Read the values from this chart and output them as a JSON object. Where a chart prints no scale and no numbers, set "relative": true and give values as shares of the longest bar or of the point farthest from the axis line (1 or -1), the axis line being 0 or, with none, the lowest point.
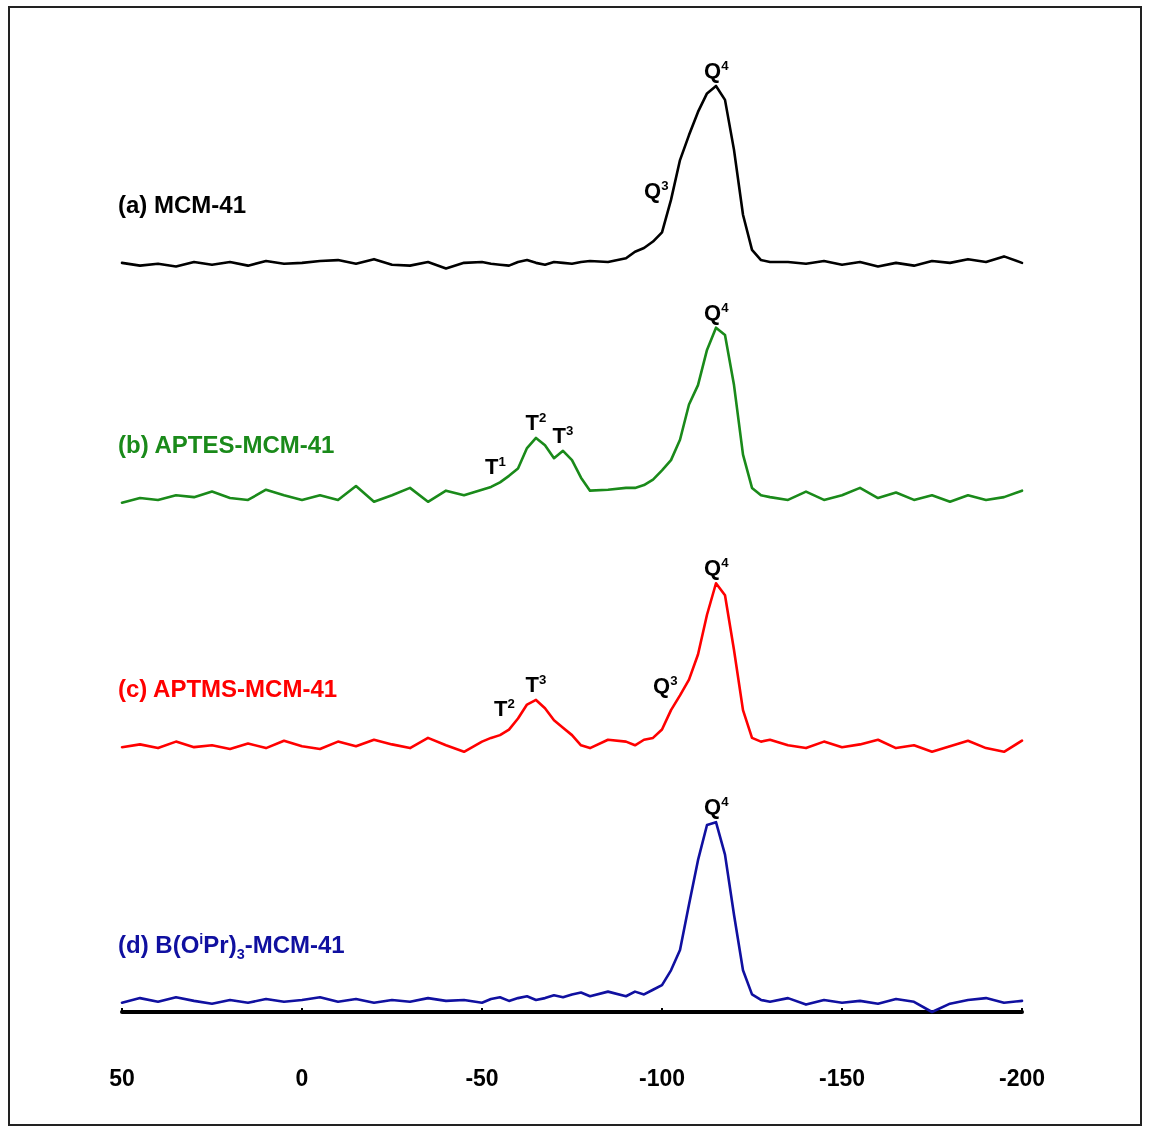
{
  "chart_data": {
    "type": "line",
    "relative": true,
    "grid": false,
    "xlim": [
      50,
      -200
    ],
    "xticks": [
      50,
      0,
      -50,
      -100,
      -150,
      -200
    ],
    "tick_labels": "x",
    "x": [
      50,
      45,
      40,
      35,
      30,
      25,
      20,
      15,
      10,
      5,
      0,
      -5,
      -10,
      -15,
      -20,
      -25,
      -30,
      -35,
      -40,
      -45,
      -50,
      -52.5,
      -55,
      -57.5,
      -60,
      -62.5,
      -65,
      -67.5,
      -70,
      -72.5,
      -75,
      -77.5,
      -80,
      -85,
      -90,
      -92.5,
      -95,
      -97.5,
      -100,
      -102.5,
      -105,
      -107.5,
      -110,
      -112.5,
      -115,
      -117.5,
      -120,
      -122.5,
      -125,
      -127.5,
      -130,
      -135,
      -140,
      -145,
      -150,
      -155,
      -160,
      -165,
      -170,
      -175,
      -180,
      -185,
      -190,
      -195,
      -200
    ],
    "series": [
      {
        "name": "(a) MCM-41",
        "color": "#000000",
        "values": [
          0.809,
          0.806,
          0.808,
          0.805,
          0.81,
          0.807,
          0.81,
          0.806,
          0.811,
          0.808,
          0.809,
          0.811,
          0.812,
          0.808,
          0.813,
          0.807,
          0.806,
          0.81,
          0.803,
          0.809,
          0.81,
          0.808,
          0.807,
          0.806,
          0.81,
          0.812,
          0.809,
          0.807,
          0.81,
          0.809,
          0.808,
          0.81,
          0.811,
          0.81,
          0.814,
          0.821,
          0.825,
          0.832,
          0.842,
          0.877,
          0.92,
          0.947,
          0.972,
          0.992,
          1,
          0.985,
          0.931,
          0.861,
          0.823,
          0.812,
          0.81,
          0.81,
          0.808,
          0.811,
          0.807,
          0.81,
          0.805,
          0.809,
          0.806,
          0.811,
          0.809,
          0.813,
          0.81,
          0.816,
          0.809
        ]
      },
      {
        "name": "(b) APTES-MCM-41",
        "color": "#1a8a1a",
        "values": [
          0.55,
          0.555,
          0.553,
          0.558,
          0.556,
          0.562,
          0.555,
          0.553,
          0.564,
          0.558,
          0.553,
          0.558,
          0.553,
          0.568,
          0.551,
          0.558,
          0.566,
          0.551,
          0.563,
          0.558,
          0.564,
          0.567,
          0.572,
          0.579,
          0.587,
          0.609,
          0.62,
          0.612,
          0.598,
          0.606,
          0.596,
          0.577,
          0.563,
          0.564,
          0.566,
          0.566,
          0.569,
          0.575,
          0.585,
          0.596,
          0.618,
          0.656,
          0.677,
          0.715,
          0.739,
          0.731,
          0.677,
          0.602,
          0.566,
          0.558,
          0.556,
          0.553,
          0.562,
          0.553,
          0.558,
          0.566,
          0.555,
          0.561,
          0.553,
          0.558,
          0.551,
          0.558,
          0.553,
          0.556,
          0.563
        ]
      },
      {
        "name": "(c) APTMS-MCM-41",
        "color": "#ff0000",
        "values": [
          0.286,
          0.289,
          0.285,
          0.292,
          0.286,
          0.288,
          0.284,
          0.29,
          0.285,
          0.293,
          0.287,
          0.284,
          0.292,
          0.287,
          0.294,
          0.289,
          0.285,
          0.296,
          0.288,
          0.281,
          0.292,
          0.296,
          0.299,
          0.305,
          0.317,
          0.332,
          0.337,
          0.328,
          0.315,
          0.307,
          0.299,
          0.288,
          0.285,
          0.294,
          0.292,
          0.288,
          0.294,
          0.296,
          0.305,
          0.326,
          0.342,
          0.359,
          0.386,
          0.429,
          0.463,
          0.45,
          0.391,
          0.326,
          0.296,
          0.292,
          0.294,
          0.288,
          0.285,
          0.292,
          0.286,
          0.289,
          0.294,
          0.285,
          0.288,
          0.281,
          0.287,
          0.293,
          0.285,
          0.281,
          0.293
        ]
      },
      {
        "name": "(d) B(O$^{i}$Pr)$_{3}$-MCM-41",
        "color": "#1010a0",
        "values": [
          0.01,
          0.015,
          0.011,
          0.016,
          0.012,
          0.009,
          0.013,
          0.01,
          0.014,
          0.011,
          0.013,
          0.016,
          0.011,
          0.014,
          0.01,
          0.013,
          0.011,
          0.015,
          0.012,
          0.013,
          0.01,
          0.014,
          0.016,
          0.012,
          0.015,
          0.017,
          0.013,
          0.015,
          0.018,
          0.016,
          0.019,
          0.021,
          0.017,
          0.022,
          0.017,
          0.022,
          0.019,
          0.024,
          0.029,
          0.045,
          0.067,
          0.116,
          0.164,
          0.202,
          0.205,
          0.17,
          0.105,
          0.045,
          0.019,
          0.013,
          0.011,
          0.015,
          0.008,
          0.013,
          0.01,
          0.012,
          0.009,
          0.014,
          0.011,
          0.0,
          0.009,
          0.013,
          0.015,
          0.01,
          0.012
        ]
      }
    ],
    "annotations": [
      {
        "text": "Q$^{4}$",
        "x": -115,
        "y": 1
      },
      {
        "text": "Q$^{3}$",
        "x": -102.5,
        "y": 0.877
      },
      {
        "text": "Q$^{4}$",
        "x": -115,
        "y": 0.739
      },
      {
        "text": "T$^{1}$",
        "x": -57.5,
        "y": 0.579
      },
      {
        "text": "T$^{2}$",
        "x": -65,
        "y": 0.62
      },
      {
        "text": "T$^{3}$",
        "x": -72.5,
        "y": 0.606
      },
      {
        "text": "Q$^{4}$",
        "x": -115,
        "y": 0.463
      },
      {
        "text": "Q$^{3}$",
        "x": -105,
        "y": 0.342
      },
      {
        "text": "T$^{2}$",
        "x": -60,
        "y": 0.317
      },
      {
        "text": "T$^{3}$",
        "x": -65,
        "y": 0.337
      },
      {
        "text": "Q$^{4}$",
        "x": -115,
        "y": 0.205
      }
    ]
  }
}
